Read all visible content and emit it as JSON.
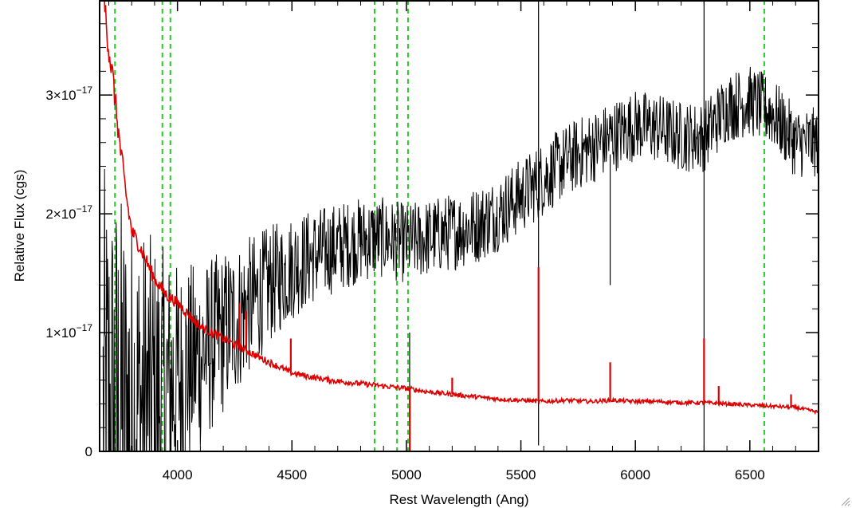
{
  "chart_data": {
    "type": "line",
    "title": "",
    "xlabel": "Rest Wavelength (Ang)",
    "ylabel": "Relative Flux (cgs)",
    "xlim": [
      3660,
      6800
    ],
    "ylim": [
      0,
      3.8e-17
    ],
    "x_ticks": [
      {
        "value": 4000,
        "label": "4000"
      },
      {
        "value": 4500,
        "label": "4500"
      },
      {
        "value": 5000,
        "label": "5000"
      },
      {
        "value": 5500,
        "label": "5500"
      },
      {
        "value": 6000,
        "label": "6000"
      },
      {
        "value": 6500,
        "label": "6500"
      }
    ],
    "y_ticks": [
      {
        "value": 0,
        "mantissa": "0",
        "exponent": ""
      },
      {
        "value": 1e-17,
        "mantissa": "1×10",
        "exponent": "−17"
      },
      {
        "value": 2e-17,
        "mantissa": "2×10",
        "exponent": "−17"
      },
      {
        "value": 3e-17,
        "mantissa": "3×10",
        "exponent": "−17"
      }
    ],
    "grid": false,
    "legend": "none",
    "reference_lines": {
      "color": "#22cc22",
      "style": "dashed",
      "x": [
        3727,
        3934,
        3969,
        4861,
        4959,
        5007,
        6563
      ]
    },
    "series": [
      {
        "color": "#000000",
        "kind": "observed spectrum",
        "x": [
          3680,
          3750,
          3850,
          3950,
          4000,
          4100,
          4200,
          4300,
          4400,
          4500,
          4600,
          4700,
          4800,
          4900,
          5000,
          5100,
          5200,
          5300,
          5400,
          5500,
          5600,
          5700,
          5800,
          5900,
          6000,
          6100,
          6200,
          6300,
          6400,
          6500,
          6600,
          6700,
          6800
        ],
        "y": [
          2e-18,
          3e-18,
          4e-18,
          5e-18,
          6e-18,
          8e-18,
          1e-17,
          1.2e-17,
          1.4e-17,
          1.55e-17,
          1.65e-17,
          1.72e-17,
          1.78e-17,
          1.8e-17,
          1.75e-17,
          1.8e-17,
          1.85e-17,
          1.9e-17,
          2e-17,
          2.15e-17,
          2.3e-17,
          2.45e-17,
          2.55e-17,
          2.65e-17,
          2.75e-17,
          2.72e-17,
          2.65e-17,
          2.65e-17,
          2.9e-17,
          2.95e-17,
          2.85e-17,
          2.6e-17,
          2.6e-17
        ],
        "noise_scale": [
          2.2e-17,
          1.9e-17,
          1.5e-17,
          1.2e-17,
          1e-17,
          8e-18,
          7e-18,
          6e-18,
          5e-18,
          4.5e-18,
          4e-18,
          3.8e-18,
          3.6e-18,
          3.4e-18,
          3.4e-18,
          3.3e-18,
          3.3e-18,
          3.3e-18,
          3.2e-18,
          3.2e-18,
          3.2e-18,
          3.1e-18,
          3.1e-18,
          3.1e-18,
          3e-18,
          3e-18,
          3e-18,
          3e-18,
          3e-18,
          3e-18,
          3e-18,
          3e-18,
          3e-18
        ],
        "spikes": [
          {
            "x": 5014,
            "y_low": 0,
            "y_high": 1e-17
          },
          {
            "x": 5577,
            "y_low": 5e-19,
            "y_high": 3.8e-17
          },
          {
            "x": 5890,
            "y_low": 1.4e-17,
            "y_high": 2.5e-17
          },
          {
            "x": 6300,
            "y_low": 0,
            "y_high": 3.8e-17
          }
        ]
      },
      {
        "color": "#dd0000",
        "kind": "error spectrum",
        "x": [
          3680,
          3700,
          3720,
          3750,
          3780,
          3800,
          3830,
          3900,
          3950,
          4000,
          4050,
          4100,
          4200,
          4300,
          4400,
          4500,
          4600,
          4700,
          4800,
          4900,
          5000,
          5100,
          5200,
          5300,
          5400,
          5500,
          5600,
          5700,
          5800,
          5900,
          6000,
          6100,
          6200,
          6300,
          6400,
          6500,
          6600,
          6700,
          6800
        ],
        "y": [
          3.8e-17,
          3.4e-17,
          3.1e-17,
          2.55e-17,
          2.1e-17,
          1.85e-17,
          1.75e-17,
          1.45e-17,
          1.32e-17,
          1.25e-17,
          1.15e-17,
          1.05e-17,
          9.5e-18,
          8.5e-18,
          7.5e-18,
          6.6e-18,
          6.2e-18,
          5.9e-18,
          5.7e-18,
          5.5e-18,
          5.3e-18,
          5e-18,
          4.8e-18,
          4.6e-18,
          4.4e-18,
          4.3e-18,
          4.2e-18,
          4.3e-18,
          4.2e-18,
          4.3e-18,
          4.2e-18,
          4.2e-18,
          4.1e-18,
          4.1e-18,
          4e-18,
          3.9e-18,
          3.8e-18,
          3.7e-18,
          3.3e-18
        ],
        "spikes": [
          {
            "x": 4270,
            "y_high": 1.25e-17
          },
          {
            "x": 4300,
            "y_high": 1.18e-17
          },
          {
            "x": 4495,
            "y_high": 9.5e-18
          },
          {
            "x": 5015,
            "y_high": 0.0
          },
          {
            "x": 5200,
            "y_high": 6.2e-18
          },
          {
            "x": 5577,
            "y_high": 1.55e-17
          },
          {
            "x": 5890,
            "y_high": 7.5e-18
          },
          {
            "x": 6300,
            "y_high": 9.5e-18
          },
          {
            "x": 6364,
            "y_high": 5.5e-18
          },
          {
            "x": 6680,
            "y_high": 4.8e-18
          }
        ]
      }
    ]
  }
}
